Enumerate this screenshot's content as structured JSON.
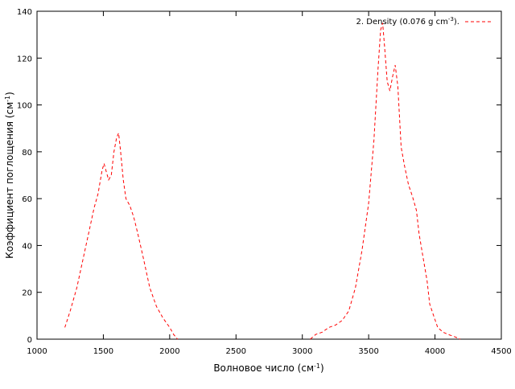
{
  "chart_data": {
    "type": "line",
    "title": "",
    "xlabel": "Волновое число (см",
    "xlabel_sup": "-1",
    "xlabel_end": ")",
    "ylabel": "Коэффициент поглощения (см",
    "ylabel_sup": "-1",
    "ylabel_end": ")",
    "xlim": [
      1000,
      4500
    ],
    "ylim": [
      0,
      140
    ],
    "xticks": [
      1000,
      1500,
      2000,
      2500,
      3000,
      3500,
      4000,
      4500
    ],
    "yticks": [
      0,
      20,
      40,
      60,
      80,
      100,
      120,
      140
    ],
    "grid": false,
    "legend_position": "top-right",
    "series": [
      {
        "name": "2. Density (0.076 g cm",
        "name_sup": "-3",
        "name_end": ").",
        "color": "#ff0000",
        "style": "dashed",
        "segments": [
          [
            [
              1210,
              5
            ],
            [
              1250,
              12
            ],
            [
              1300,
              22
            ],
            [
              1350,
              35
            ],
            [
              1400,
              48
            ],
            [
              1430,
              56
            ],
            [
              1460,
              62
            ],
            [
              1490,
              72
            ],
            [
              1505,
              75
            ],
            [
              1520,
              72
            ],
            [
              1540,
              68
            ],
            [
              1560,
              70
            ],
            [
              1580,
              80
            ],
            [
              1600,
              86
            ],
            [
              1615,
              88
            ],
            [
              1630,
              80
            ],
            [
              1650,
              68
            ],
            [
              1670,
              60
            ],
            [
              1700,
              57
            ],
            [
              1730,
              52
            ],
            [
              1760,
              45
            ],
            [
              1800,
              35
            ],
            [
              1850,
              22
            ],
            [
              1900,
              14
            ],
            [
              1950,
              9
            ],
            [
              2000,
              5
            ],
            [
              2030,
              2
            ],
            [
              2060,
              0
            ]
          ],
          [
            [
              3060,
              0
            ],
            [
              3100,
              2
            ],
            [
              3150,
              3
            ],
            [
              3200,
              5
            ],
            [
              3250,
              6
            ],
            [
              3300,
              8
            ],
            [
              3350,
              12
            ],
            [
              3400,
              22
            ],
            [
              3450,
              38
            ],
            [
              3500,
              58
            ],
            [
              3540,
              85
            ],
            [
              3570,
              115
            ],
            [
              3590,
              132
            ],
            [
              3605,
              135
            ],
            [
              3620,
              125
            ],
            [
              3640,
              110
            ],
            [
              3660,
              106
            ],
            [
              3680,
              112
            ],
            [
              3700,
              117
            ],
            [
              3720,
              108
            ],
            [
              3745,
              82
            ],
            [
              3770,
              74
            ],
            [
              3800,
              66
            ],
            [
              3830,
              61
            ],
            [
              3860,
              55
            ],
            [
              3880,
              45
            ],
            [
              3910,
              35
            ],
            [
              3940,
              25
            ],
            [
              3960,
              15
            ],
            [
              3990,
              10
            ],
            [
              4020,
              5
            ],
            [
              4060,
              3
            ],
            [
              4100,
              2
            ],
            [
              4150,
              1
            ],
            [
              4190,
              0
            ]
          ]
        ]
      }
    ]
  }
}
